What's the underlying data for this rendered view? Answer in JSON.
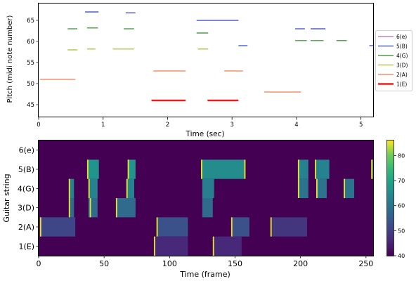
{
  "chart_data": [
    {
      "type": "line",
      "xlabel": "Time (sec)",
      "ylabel": "Pitch (midi note number)",
      "xlim": [
        0,
        5.2
      ],
      "ylim": [
        42,
        69
      ],
      "xticks": [
        "0",
        "1",
        "2",
        "3",
        "4",
        "5"
      ],
      "xtick_values": [
        0,
        1,
        2,
        3,
        4,
        5
      ],
      "yticks": [
        "45",
        "50",
        "55",
        "60",
        "65"
      ],
      "ytick_values": [
        45,
        50,
        55,
        60,
        65
      ],
      "legend_position": "right",
      "series": [
        {
          "name": "6(e)",
          "color": "#b46bb4",
          "width": 1.2,
          "segments": []
        },
        {
          "name": "5(B)",
          "color": "#2a3ec4",
          "width": 1.2,
          "segments": [
            {
              "x": [
                0.72,
                0.93
              ],
              "y": 67
            },
            {
              "x": [
                1.35,
                1.5
              ],
              "y": 66.8
            },
            {
              "x": [
                2.45,
                3.1
              ],
              "y": 65
            },
            {
              "x": [
                3.1,
                3.24
              ],
              "y": 59
            },
            {
              "x": [
                3.98,
                4.13
              ],
              "y": 63
            },
            {
              "x": [
                4.22,
                4.45
              ],
              "y": 63
            },
            {
              "x": [
                5.13,
                5.25
              ],
              "y": 59
            }
          ]
        },
        {
          "name": "4(G)",
          "color": "#2a8a2a",
          "width": 1.2,
          "segments": [
            {
              "x": [
                0.45,
                0.6
              ],
              "y": 63
            },
            {
              "x": [
                0.75,
                0.92
              ],
              "y": 63.2
            },
            {
              "x": [
                1.32,
                1.48
              ],
              "y": 63
            },
            {
              "x": [
                2.45,
                2.63
              ],
              "y": 62
            },
            {
              "x": [
                3.98,
                4.16
              ],
              "y": 60.2
            },
            {
              "x": [
                4.22,
                4.42
              ],
              "y": 60.2
            },
            {
              "x": [
                4.62,
                4.78
              ],
              "y": 60.2
            }
          ]
        },
        {
          "name": "3(D)",
          "color": "#aab030",
          "width": 1.2,
          "segments": [
            {
              "x": [
                0.45,
                0.6
              ],
              "y": 58
            },
            {
              "x": [
                0.75,
                0.88
              ],
              "y": 58.2
            },
            {
              "x": [
                1.15,
                1.48
              ],
              "y": 58.2
            },
            {
              "x": [
                2.47,
                2.63
              ],
              "y": 58.2
            }
          ]
        },
        {
          "name": "2(A)",
          "color": "#f07a4e",
          "width": 1.2,
          "segments": [
            {
              "x": [
                0.02,
                0.57
              ],
              "y": 51
            },
            {
              "x": [
                1.78,
                2.28
              ],
              "y": 53
            },
            {
              "x": [
                2.88,
                3.17
              ],
              "y": 53
            },
            {
              "x": [
                3.5,
                4.07
              ],
              "y": 48
            }
          ]
        },
        {
          "name": "1(E)",
          "color": "#e8201e",
          "width": 2.4,
          "segments": [
            {
              "x": [
                1.75,
                2.28
              ],
              "y": 46
            },
            {
              "x": [
                2.62,
                3.1
              ],
              "y": 46
            }
          ]
        }
      ]
    },
    {
      "type": "heatmap",
      "xlabel": "Time (frame)",
      "ylabel": "Guitar string",
      "xlim": [
        0,
        256
      ],
      "xticks": [
        "0",
        "50",
        "100",
        "150",
        "200",
        "250"
      ],
      "xtick_values": [
        0,
        50,
        100,
        150,
        200,
        250
      ],
      "rows": [
        "1(E)",
        "2(A)",
        "3(D)",
        "4(G)",
        "5(B)",
        "6(e)"
      ],
      "colorbar_ticks": [
        "40",
        "50",
        "60",
        "70",
        "80"
      ],
      "colorbar_values": [
        40,
        50,
        60,
        70,
        80
      ],
      "value_range": [
        40,
        86
      ],
      "background_value": 40,
      "cells": [
        {
          "row": "5(B)",
          "x": [
            37,
            46
          ],
          "value": 67
        },
        {
          "row": "5(B)",
          "x": [
            68,
            74
          ],
          "value": 67
        },
        {
          "row": "5(B)",
          "x": [
            124,
            157
          ],
          "value": 65
        },
        {
          "row": "5(B)",
          "x": [
            198,
            206
          ],
          "value": 63
        },
        {
          "row": "5(B)",
          "x": [
            211,
            222
          ],
          "value": 63
        },
        {
          "row": "5(B)",
          "x": [
            254,
            256
          ],
          "value": 59
        },
        {
          "row": "4(G)",
          "x": [
            23,
            27
          ],
          "value": 63
        },
        {
          "row": "4(G)",
          "x": [
            38,
            45
          ],
          "value": 63
        },
        {
          "row": "4(G)",
          "x": [
            67,
            73
          ],
          "value": 63
        },
        {
          "row": "4(G)",
          "x": [
            125,
            134
          ],
          "value": 62
        },
        {
          "row": "4(G)",
          "x": [
            198,
            206
          ],
          "value": 60
        },
        {
          "row": "4(G)",
          "x": [
            212,
            220
          ],
          "value": 60
        },
        {
          "row": "4(G)",
          "x": [
            233,
            241
          ],
          "value": 60
        },
        {
          "row": "3(D)",
          "x": [
            23,
            27
          ],
          "value": 58
        },
        {
          "row": "3(D)",
          "x": [
            38,
            45
          ],
          "value": 58
        },
        {
          "row": "3(D)",
          "x": [
            59,
            74
          ],
          "value": 58
        },
        {
          "row": "3(D)",
          "x": [
            125,
            133
          ],
          "value": 58
        },
        {
          "row": "2(A)",
          "x": [
            1,
            28
          ],
          "value": 51
        },
        {
          "row": "2(A)",
          "x": [
            90,
            114
          ],
          "value": 53
        },
        {
          "row": "2(A)",
          "x": [
            148,
            161
          ],
          "value": 53
        },
        {
          "row": "2(A)",
          "x": [
            178,
            205
          ],
          "value": 48
        },
        {
          "row": "1(E)",
          "x": [
            89,
            114
          ],
          "value": 46
        },
        {
          "row": "1(E)",
          "x": [
            134,
            155
          ],
          "value": 46
        }
      ],
      "onsets": [
        {
          "row": "5(B)",
          "x": 37
        },
        {
          "row": "5(B)",
          "x": 68
        },
        {
          "row": "5(B)",
          "x": 124
        },
        {
          "row": "5(B)",
          "x": 157
        },
        {
          "row": "5(B)",
          "x": 198
        },
        {
          "row": "5(B)",
          "x": 211
        },
        {
          "row": "5(B)",
          "x": 254
        },
        {
          "row": "4(G)",
          "x": 23
        },
        {
          "row": "4(G)",
          "x": 38
        },
        {
          "row": "4(G)",
          "x": 67
        },
        {
          "row": "4(G)",
          "x": 198
        },
        {
          "row": "4(G)",
          "x": 212
        },
        {
          "row": "4(G)",
          "x": 233
        },
        {
          "row": "3(D)",
          "x": 23
        },
        {
          "row": "3(D)",
          "x": 39
        },
        {
          "row": "3(D)",
          "x": 59
        },
        {
          "row": "2(A)",
          "x": 1
        },
        {
          "row": "2(A)",
          "x": 90
        },
        {
          "row": "2(A)",
          "x": 147
        },
        {
          "row": "2(A)",
          "x": 177
        },
        {
          "row": "1(E)",
          "x": 88
        },
        {
          "row": "1(E)",
          "x": 133
        }
      ],
      "onset_value": 85
    }
  ]
}
